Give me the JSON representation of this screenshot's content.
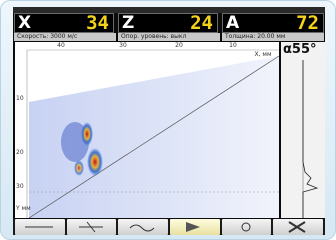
{
  "readouts": [
    {
      "label": "X",
      "value": "34"
    },
    {
      "label": "Z",
      "value": "24"
    },
    {
      "label": "A",
      "value": "72"
    }
  ],
  "info": [
    "Скорость: 3000 м/с",
    "Опор. уровень: выкл",
    "Толщина: 20.00 мм"
  ],
  "angle": "α55°",
  "scan": {
    "top_ticks": [
      "40",
      "30",
      "20",
      "10"
    ],
    "top_unit": "X, мм",
    "left_ticks": [
      "10",
      "20",
      "30"
    ],
    "left_unit": "Y мм"
  }
}
